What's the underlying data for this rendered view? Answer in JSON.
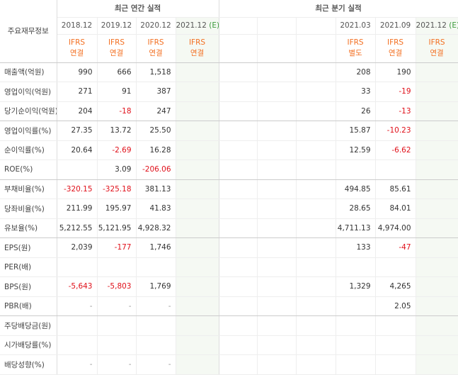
{
  "header": {
    "corner": "주요재무정보",
    "annual_title": "최근 연간 실적",
    "quarterly_title": "최근 분기 실적"
  },
  "periods": [
    {
      "date": "2018.12",
      "basis": "IFRS",
      "scope": "연결"
    },
    {
      "date": "2019.12",
      "basis": "IFRS",
      "scope": "연결"
    },
    {
      "date": "2020.12",
      "basis": "IFRS",
      "scope": "연결"
    },
    {
      "date": "2021.12",
      "mark": "(E)",
      "basis": "IFRS",
      "scope": "연결"
    },
    {
      "date": null,
      "basis": null,
      "scope": null
    },
    {
      "date": null,
      "basis": null,
      "scope": null
    },
    {
      "date": null,
      "basis": null,
      "scope": null
    },
    {
      "date": "2021.03",
      "basis": "IFRS",
      "scope": "별도"
    },
    {
      "date": "2021.09",
      "basis": "IFRS",
      "scope": "연결"
    },
    {
      "date": "2021.12",
      "mark": "(E)",
      "basis": "IFRS",
      "scope": "연결"
    }
  ],
  "table": {
    "rows": [
      {
        "label": "매출액(억원)",
        "cells": [
          "990",
          "666",
          "1,518",
          null,
          null,
          null,
          null,
          "208",
          "190",
          null
        ]
      },
      {
        "label": "영업이익(억원)",
        "cells": [
          "271",
          "91",
          "387",
          null,
          null,
          null,
          null,
          "33",
          "-19",
          null
        ]
      },
      {
        "label": "당기순이익(억원)",
        "cells": [
          "204",
          "-18",
          "247",
          null,
          null,
          null,
          null,
          "26",
          "-13",
          null
        ]
      },
      {
        "label": "영업이익률(%)",
        "cells": [
          "27.35",
          "13.72",
          "25.50",
          null,
          null,
          null,
          null,
          "15.87",
          "-10.23",
          null
        ]
      },
      {
        "label": "순이익률(%)",
        "cells": [
          "20.64",
          "-2.69",
          "16.28",
          null,
          null,
          null,
          null,
          "12.59",
          "-6.62",
          null
        ]
      },
      {
        "label": "ROE(%)",
        "cells": [
          null,
          "3.09",
          "-206.06",
          null,
          null,
          null,
          null,
          null,
          null,
          null
        ]
      },
      {
        "label": "부채비율(%)",
        "cells": [
          "-320.15",
          "-325.18",
          "381.13",
          null,
          null,
          null,
          null,
          "494.85",
          "85.61",
          null
        ]
      },
      {
        "label": "당좌비율(%)",
        "cells": [
          "211.99",
          "195.97",
          "41.83",
          null,
          null,
          null,
          null,
          "28.65",
          "84.01",
          null
        ]
      },
      {
        "label": "유보율(%)",
        "cells": [
          "5,212.55",
          "5,121.95",
          "4,928.32",
          null,
          null,
          null,
          null,
          "4,711.13",
          "4,974.00",
          null
        ]
      },
      {
        "label": "EPS(원)",
        "cells": [
          "2,039",
          "-177",
          "1,746",
          null,
          null,
          null,
          null,
          "133",
          "-47",
          null
        ]
      },
      {
        "label": "PER(배)",
        "cells": [
          null,
          null,
          null,
          null,
          null,
          null,
          null,
          null,
          null,
          null
        ]
      },
      {
        "label": "BPS(원)",
        "cells": [
          "-5,643",
          "-5,803",
          "1,769",
          null,
          null,
          null,
          null,
          "1,329",
          "4,265",
          null
        ]
      },
      {
        "label": "PBR(배)",
        "cells": [
          "-",
          "-",
          "-",
          null,
          null,
          null,
          null,
          null,
          "2.05",
          null
        ]
      },
      {
        "label": "주당배당금(원)",
        "cells": [
          null,
          null,
          null,
          null,
          null,
          null,
          null,
          null,
          null,
          null
        ]
      },
      {
        "label": "시가배당률(%)",
        "cells": [
          null,
          null,
          null,
          null,
          null,
          null,
          null,
          null,
          null,
          null
        ]
      },
      {
        "label": "배당성향(%)",
        "cells": [
          "-",
          "-",
          "-",
          null,
          null,
          null,
          null,
          null,
          null,
          null
        ]
      }
    ],
    "group_ends": [
      2,
      5,
      8,
      12
    ]
  }
}
